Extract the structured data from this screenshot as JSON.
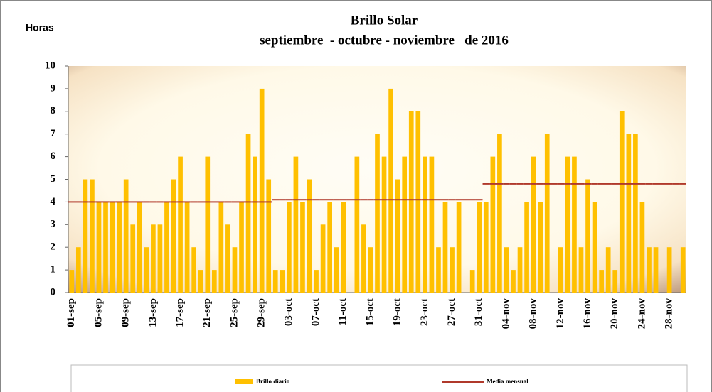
{
  "chart_data": {
    "type": "bar",
    "title": "Brillo Solar",
    "subtitle": "septiembre  - octubre - noviembre   de 2016",
    "y_label": "Horas",
    "categories": [
      "01-sep",
      null,
      null,
      null,
      "05-sep",
      null,
      null,
      null,
      "09-sep",
      null,
      null,
      null,
      "13-sep",
      null,
      null,
      null,
      "17-sep",
      null,
      null,
      null,
      "21-sep",
      null,
      null,
      null,
      "25-sep",
      null,
      null,
      null,
      "29-sep",
      null,
      null,
      null,
      "03-oct",
      null,
      null,
      null,
      "07-oct",
      null,
      null,
      null,
      "11-oct",
      null,
      null,
      null,
      "15-oct",
      null,
      null,
      null,
      "19-oct",
      null,
      null,
      null,
      "23-oct",
      null,
      null,
      null,
      "27-oct",
      null,
      null,
      null,
      "31-oct",
      null,
      null,
      null,
      "04-nov",
      null,
      null,
      null,
      "08-nov",
      null,
      null,
      null,
      "12-nov",
      null,
      null,
      null,
      "16-nov",
      null,
      null,
      null,
      "20-nov",
      null,
      null,
      null,
      "24-nov",
      null,
      null,
      null,
      "28-nov",
      null,
      null
    ],
    "series": [
      {
        "name": "Brillo diario",
        "type": "bar",
        "color": "#FFC000",
        "values": [
          1,
          2,
          5,
          5,
          4,
          4,
          4,
          4,
          5,
          3,
          4,
          2,
          3,
          3,
          4,
          5,
          6,
          4,
          2,
          1,
          6,
          1,
          4,
          3,
          2,
          4,
          7,
          6,
          9,
          5,
          1,
          1,
          4,
          6,
          4,
          5,
          1,
          3,
          4,
          2,
          4,
          0,
          6,
          3,
          2,
          7,
          6,
          9,
          5,
          6,
          8,
          8,
          6,
          6,
          2,
          4,
          2,
          4,
          0,
          1,
          4,
          4,
          6,
          7,
          2,
          1,
          2,
          4,
          6,
          4,
          7,
          0,
          2,
          6,
          6,
          2,
          5,
          4,
          1,
          2,
          1,
          8,
          7,
          7,
          4,
          2,
          2,
          0,
          2,
          0,
          2
        ]
      },
      {
        "name": "Media mensual",
        "type": "line",
        "color": "#B0392B",
        "values": [
          4,
          4,
          4,
          4,
          4,
          4,
          4,
          4,
          4,
          4,
          4,
          4,
          4,
          4,
          4,
          4,
          4,
          4,
          4,
          4,
          4,
          4,
          4,
          4,
          4,
          4,
          4,
          4,
          4,
          4,
          4.1,
          4.1,
          4.1,
          4.1,
          4.1,
          4.1,
          4.1,
          4.1,
          4.1,
          4.1,
          4.1,
          4.1,
          4.1,
          4.1,
          4.1,
          4.1,
          4.1,
          4.1,
          4.1,
          4.1,
          4.1,
          4.1,
          4.1,
          4.1,
          4.1,
          4.1,
          4.1,
          4.1,
          4.1,
          4.1,
          4.1,
          4.8,
          4.8,
          4.8,
          4.8,
          4.8,
          4.8,
          4.8,
          4.8,
          4.8,
          4.8,
          4.8,
          4.8,
          4.8,
          4.8,
          4.8,
          4.8,
          4.8,
          4.8,
          4.8,
          4.8,
          4.8,
          4.8,
          4.8,
          4.8,
          4.8,
          4.8,
          4.8,
          4.8,
          4.8,
          4.8
        ]
      }
    ],
    "ylim": [
      0,
      10
    ],
    "yticks": [
      0,
      1,
      2,
      3,
      4,
      5,
      6,
      7,
      8,
      9,
      10
    ],
    "grid": false
  }
}
